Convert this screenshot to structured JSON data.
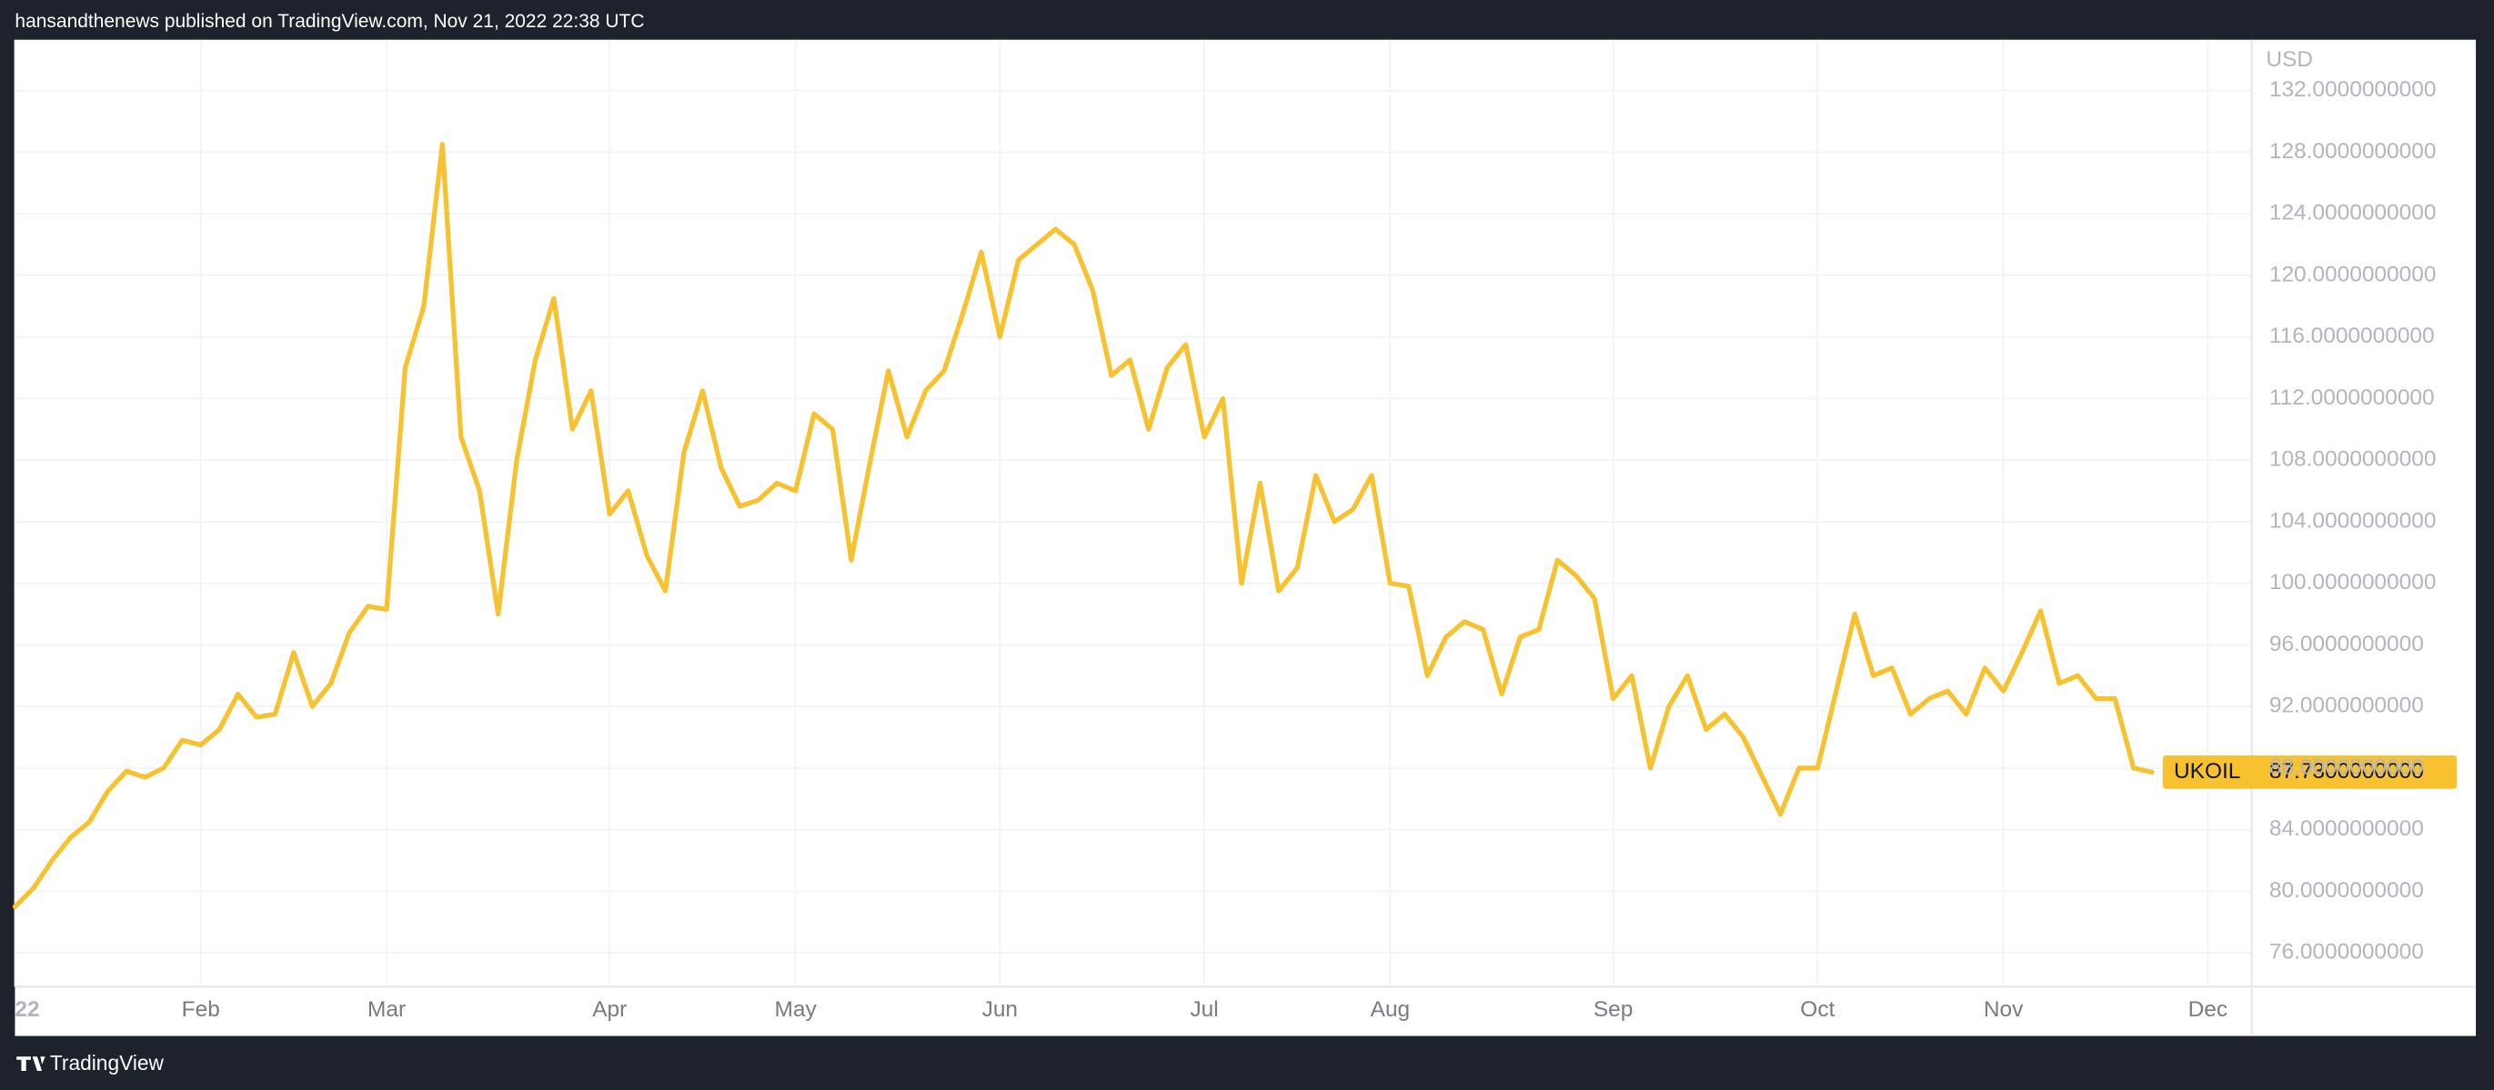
{
  "header": {
    "text": "hansandthenews published on TradingView.com, Nov 21, 2022 22:38 UTC"
  },
  "footer": {
    "brand": "TradingView"
  },
  "chart_data": {
    "type": "line",
    "axis_unit": "USD",
    "categories": [
      "22",
      null,
      null,
      null,
      null,
      null,
      null,
      null,
      null,
      null,
      "Feb",
      null,
      null,
      null,
      null,
      null,
      null,
      null,
      null,
      null,
      "Mar",
      null,
      null,
      null,
      null,
      null,
      null,
      null,
      null,
      null,
      null,
      null,
      "Apr",
      null,
      null,
      null,
      null,
      null,
      null,
      null,
      null,
      null,
      "May",
      null,
      null,
      null,
      null,
      null,
      null,
      null,
      null,
      null,
      null,
      "Jun",
      null,
      null,
      null,
      null,
      null,
      null,
      null,
      null,
      null,
      null,
      "Jul",
      null,
      null,
      null,
      null,
      null,
      null,
      null,
      null,
      null,
      "Aug",
      null,
      null,
      null,
      null,
      null,
      null,
      null,
      null,
      null,
      null,
      null,
      "Sep",
      null,
      null,
      null,
      null,
      null,
      null,
      null,
      null,
      null,
      null,
      "Oct",
      null,
      null,
      null,
      null,
      null,
      null,
      null,
      null,
      null,
      "Nov",
      null,
      null,
      null,
      null,
      null,
      null,
      null,
      null,
      null,
      null,
      "Dec"
    ],
    "series": [
      {
        "name": "UKOIL",
        "color": "#f7c12f",
        "values": [
          79,
          80.2,
          82,
          83.5,
          84.5,
          86.5,
          87.8,
          87.4,
          88,
          89.8,
          89.5,
          90.5,
          92.8,
          91.3,
          91.5,
          95.5,
          92,
          93.5,
          96.8,
          98.5,
          98.3,
          114,
          118,
          128.5,
          109.5,
          106,
          98,
          108,
          114.5,
          118.5,
          110,
          112.5,
          104.5,
          106,
          101.8,
          99.5,
          108.5,
          112.5,
          107.5,
          105,
          105.4,
          106.5,
          106,
          111,
          110,
          101.5,
          107.8,
          113.8,
          109.5,
          112.5,
          113.8,
          117.5,
          121.5,
          116,
          121,
          122,
          123,
          122,
          119,
          113.5,
          114.5,
          110,
          114,
          115.5,
          109.5,
          112,
          100,
          106.5,
          99.5,
          101,
          107,
          104,
          104.8,
          107,
          100,
          99.8,
          94,
          96.5,
          97.5,
          97,
          92.8,
          96.5,
          97,
          101.5,
          100.5,
          99,
          92.5,
          94,
          88,
          92,
          94,
          90.5,
          91.5,
          90,
          87.5,
          85,
          88,
          88,
          93,
          98,
          94,
          94.5,
          91.5,
          92.5,
          93,
          91.5,
          94.5,
          93,
          95.5,
          98.2,
          93.5,
          94,
          92.5,
          92.5,
          88,
          87.73,
          null,
          null,
          null
        ],
        "value_labels": [
          null,
          null,
          null,
          null,
          null,
          null,
          null,
          null,
          null,
          null,
          null,
          null,
          null,
          null,
          null,
          null,
          null,
          null,
          null,
          null,
          null,
          null,
          null,
          null,
          null,
          null,
          null,
          null,
          null,
          null,
          null,
          null,
          null,
          null,
          null,
          null,
          null,
          null,
          null,
          null,
          null,
          null,
          null,
          null,
          null,
          null,
          null,
          null,
          null,
          null,
          null,
          null,
          null,
          null,
          null,
          null,
          null,
          null,
          null,
          null,
          null,
          null,
          null,
          null,
          null,
          null,
          null,
          null,
          null,
          null,
          null,
          null,
          null,
          null,
          null,
          null,
          null,
          null,
          null,
          null,
          null,
          null,
          null,
          null,
          null,
          null,
          null,
          null,
          null,
          null,
          null,
          null,
          null,
          null,
          null,
          null,
          null,
          null,
          null,
          null,
          null,
          null,
          null,
          null,
          null,
          null,
          null,
          null,
          null,
          null,
          null,
          null,
          null,
          null,
          null,
          "87.7300000000",
          null,
          null,
          null
        ]
      }
    ],
    "ylim": [
      73.9,
      135.3
    ],
    "yticks": [
      {
        "value": 76,
        "label": "76.0000000000"
      },
      {
        "value": 80,
        "label": "80.0000000000"
      },
      {
        "value": 84,
        "label": "84.0000000000"
      },
      {
        "value": 88,
        "label": "88.0000000000"
      },
      {
        "value": 92,
        "label": "92.0000000000"
      },
      {
        "value": 96,
        "label": "96.0000000000"
      },
      {
        "value": 100,
        "label": "100.0000000000"
      },
      {
        "value": 104,
        "label": "104.0000000000"
      },
      {
        "value": 108,
        "label": "108.0000000000"
      },
      {
        "value": 112,
        "label": "112.0000000000"
      },
      {
        "value": 116,
        "label": "116.0000000000"
      },
      {
        "value": 120,
        "label": "120.0000000000"
      },
      {
        "value": 124,
        "label": "124.0000000000"
      },
      {
        "value": 128,
        "label": "128.0000000000"
      },
      {
        "value": 132,
        "label": "132.0000000000"
      }
    ],
    "grid": true
  }
}
